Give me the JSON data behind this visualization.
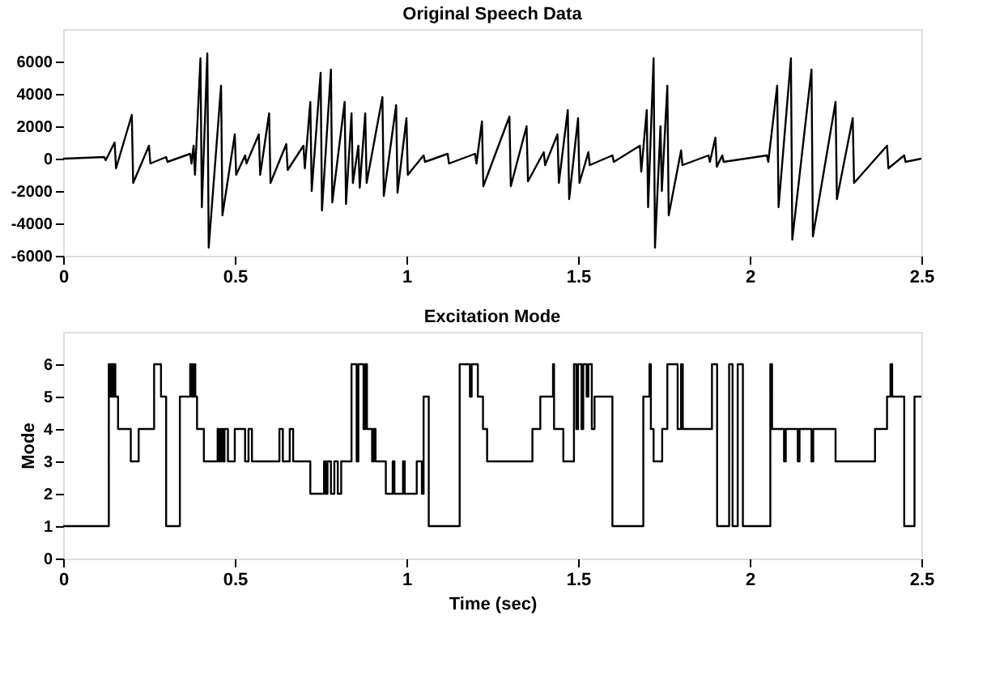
{
  "chart_data": [
    {
      "type": "line",
      "title": "Original Speech Data",
      "xlim": [
        0,
        2.5
      ],
      "xticks": [
        0,
        0.5,
        1,
        1.5,
        2,
        2.5
      ],
      "ylim": [
        -6000,
        8000
      ],
      "yticks": [
        -6000,
        -4000,
        -2000,
        0,
        2000,
        4000,
        6000
      ],
      "grid": false,
      "marker": "none",
      "line_style": "solid",
      "series": [
        {
          "color": "#000000",
          "x": [
            0,
            0.004,
            0.12,
            0.124,
            0.15,
            0.154,
            0.2,
            0.204,
            0.25,
            0.254,
            0.3,
            0.304,
            0.37,
            0.374,
            0.38,
            0.384,
            0.4,
            0.404,
            0.42,
            0.424,
            0.46,
            0.464,
            0.5,
            0.504,
            0.53,
            0.534,
            0.57,
            0.574,
            0.6,
            0.604,
            0.65,
            0.654,
            0.7,
            0.704,
            0.72,
            0.724,
            0.75,
            0.754,
            0.78,
            0.784,
            0.82,
            0.824,
            0.84,
            0.844,
            0.86,
            0.864,
            0.88,
            0.884,
            0.93,
            0.934,
            0.97,
            0.974,
            1.0,
            1.004,
            1.05,
            1.054,
            1.12,
            1.124,
            1.2,
            1.204,
            1.22,
            1.224,
            1.3,
            1.304,
            1.35,
            1.354,
            1.4,
            1.404,
            1.44,
            1.444,
            1.47,
            1.474,
            1.5,
            1.504,
            1.53,
            1.534,
            1.6,
            1.604,
            1.68,
            1.684,
            1.7,
            1.704,
            1.72,
            1.724,
            1.74,
            1.744,
            1.76,
            1.764,
            1.8,
            1.804,
            1.88,
            1.884,
            1.9,
            1.904,
            1.92,
            1.924,
            2.05,
            2.054,
            2.08,
            2.084,
            2.12,
            2.124,
            2.18,
            2.184,
            2.25,
            2.254,
            2.3,
            2.304,
            2.4,
            2.404,
            2.45,
            2.454,
            2.5
          ],
          "values": [
            0,
            0,
            100,
            -100,
            1000,
            -600,
            2700,
            -1500,
            800,
            -300,
            100,
            -200,
            300,
            -300,
            800,
            -1000,
            6200,
            -3000,
            6500,
            -5500,
            4500,
            -3500,
            1500,
            -1000,
            200,
            -300,
            1500,
            -1000,
            2800,
            -1500,
            900,
            -700,
            800,
            -600,
            3500,
            -2000,
            5300,
            -3200,
            5500,
            -2700,
            3500,
            -2800,
            2800,
            -1500,
            800,
            -1800,
            2800,
            -1500,
            3800,
            -2300,
            3300,
            -2100,
            2500,
            -1000,
            200,
            -200,
            300,
            -300,
            300,
            -300,
            2300,
            -1700,
            2600,
            -1700,
            2000,
            -1400,
            400,
            -400,
            1500,
            -1500,
            3000,
            -2500,
            2500,
            -1500,
            400,
            -400,
            200,
            -200,
            800,
            -800,
            3000,
            -3000,
            6200,
            -5500,
            2000,
            -2000,
            4500,
            -3500,
            500,
            -400,
            200,
            -200,
            1300,
            -500,
            200,
            -200,
            200,
            -200,
            4500,
            -3000,
            6200,
            -5000,
            5500,
            -4800,
            3500,
            -2500,
            2500,
            -1500,
            800,
            -600,
            200,
            -200,
            0
          ]
        }
      ]
    },
    {
      "type": "step",
      "title": "Excitation Mode",
      "xlabel": "Time  (sec)",
      "ylabel": "Mode",
      "xlim": [
        0,
        2.5
      ],
      "xticks": [
        0,
        0.5,
        1,
        1.5,
        2,
        2.5
      ],
      "ylim": [
        0,
        7
      ],
      "yticks": [
        0,
        1,
        2,
        3,
        4,
        5,
        6
      ],
      "grid": false,
      "marker": "none",
      "line_style": "solid",
      "series": [
        {
          "color": "#000000",
          "x": [
            0,
            0.133,
            0.138,
            0.141,
            0.145,
            0.148,
            0.152,
            0.16,
            0.197,
            0.22,
            0.265,
            0.285,
            0.3,
            0.34,
            0.37,
            0.375,
            0.38,
            0.385,
            0.39,
            0.41,
            0.45,
            0.455,
            0.46,
            0.465,
            0.47,
            0.48,
            0.5,
            0.53,
            0.54,
            0.55,
            0.63,
            0.64,
            0.66,
            0.67,
            0.72,
            0.76,
            0.765,
            0.77,
            0.78,
            0.79,
            0.8,
            0.81,
            0.84,
            0.855,
            0.86,
            0.875,
            0.88,
            0.885,
            0.9,
            0.905,
            0.91,
            0.94,
            0.96,
            0.965,
            0.99,
            0.995,
            1.03,
            1.045,
            1.05,
            1.065,
            1.155,
            1.185,
            1.19,
            1.208,
            1.223,
            1.235,
            1.367,
            1.39,
            1.427,
            1.43,
            1.457,
            1.488,
            1.495,
            1.5,
            1.51,
            1.515,
            1.525,
            1.53,
            1.54,
            1.548,
            1.6,
            1.69,
            1.708,
            1.712,
            1.72,
            1.745,
            1.76,
            1.79,
            1.8,
            1.805,
            1.89,
            1.905,
            1.94,
            1.95,
            1.965,
            1.98,
            2.06,
            2.065,
            2.1,
            2.105,
            2.14,
            2.145,
            2.18,
            2.185,
            2.25,
            2.365,
            2.4,
            2.41,
            2.415,
            2.45,
            2.48,
            2.5
          ],
          "values": [
            1,
            6,
            5,
            6,
            5,
            6,
            5,
            4,
            3,
            4,
            6,
            5,
            1,
            5,
            6,
            5,
            6,
            5,
            4,
            3,
            4,
            3,
            4,
            3,
            4,
            3,
            4,
            3,
            4,
            3,
            4,
            3,
            4,
            3,
            2,
            3,
            2,
            3,
            2,
            3,
            2,
            3,
            6,
            3,
            6,
            4,
            6,
            4,
            3,
            4,
            3,
            2,
            3,
            2,
            3,
            2,
            3,
            2,
            5,
            1,
            6,
            5,
            6,
            5,
            4,
            3,
            4,
            5,
            6,
            4,
            3,
            6,
            4,
            6,
            4,
            6,
            5,
            6,
            4,
            5,
            1,
            5,
            6,
            4,
            3,
            4,
            6,
            4,
            6,
            4,
            6,
            1,
            6,
            1,
            6,
            1,
            6,
            4,
            3,
            4,
            3,
            4,
            3,
            4,
            3,
            4,
            5,
            6,
            5,
            1,
            5,
            5
          ]
        }
      ]
    }
  ]
}
